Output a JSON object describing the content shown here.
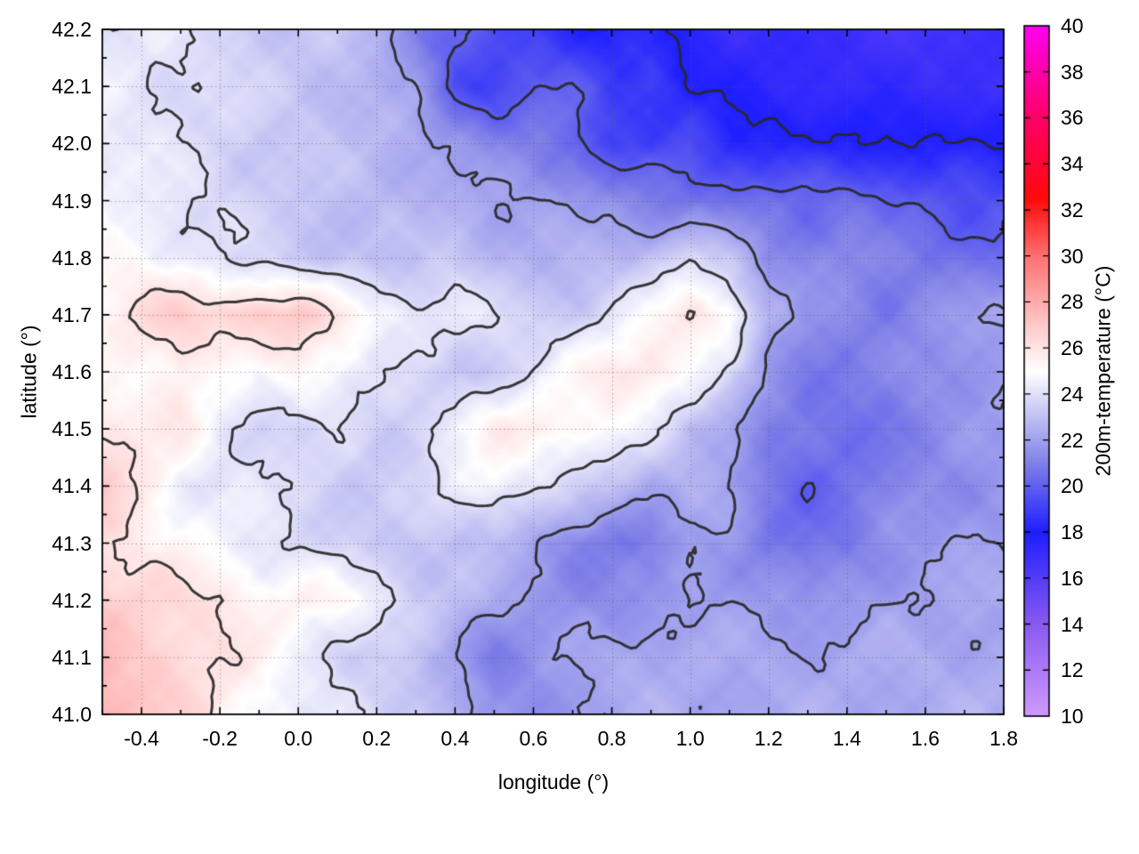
{
  "chart_data": {
    "type": "heatmap",
    "xlabel": "longitude (°)",
    "ylabel": "latitude (°)",
    "x_range": [
      -0.5,
      1.8
    ],
    "y_range": [
      41.0,
      42.2
    ],
    "x_ticks": {
      "values": [
        -0.4,
        -0.2,
        0.0,
        0.2,
        0.4,
        0.6,
        0.8,
        1.0,
        1.2,
        1.4,
        1.6,
        1.8
      ],
      "labels": [
        "-0.4",
        "-0.2",
        "0.0",
        "0.2",
        "0.4",
        "0.6",
        "0.8",
        "1.0",
        "1.2",
        "1.4",
        "1.6",
        "1.8"
      ],
      "minor_step": 0.1
    },
    "y_ticks": {
      "values": [
        41.0,
        41.1,
        41.2,
        41.3,
        41.4,
        41.5,
        41.6,
        41.7,
        41.8,
        41.9,
        42.0,
        42.1,
        42.2
      ],
      "labels": [
        "41.0",
        "41.1",
        "41.2",
        "41.3",
        "41.4",
        "41.5",
        "41.6",
        "41.7",
        "41.8",
        "41.9",
        "42.0",
        "42.1",
        "42.2"
      ],
      "minor_step": 0.05
    },
    "grid": {
      "show": true,
      "style": "dotted",
      "color": "rgba(95,95,95,0.55)"
    },
    "colorbar": {
      "label": "200m-temperature (°C)",
      "range": [
        10,
        40
      ],
      "ticks": {
        "values": [
          10,
          12,
          14,
          16,
          18,
          20,
          22,
          24,
          26,
          28,
          30,
          32,
          34,
          36,
          38,
          40
        ],
        "labels": [
          "10",
          "12",
          "14",
          "16",
          "18",
          "20",
          "22",
          "24",
          "26",
          "28",
          "30",
          "32",
          "34",
          "36",
          "38",
          "40"
        ]
      },
      "palette_stops": [
        [
          10,
          "#cf9aff"
        ],
        [
          14,
          "#8a5af0"
        ],
        [
          18,
          "#1e1eff"
        ],
        [
          21,
          "#8080e8"
        ],
        [
          25,
          "#ffffff"
        ],
        [
          27,
          "#ffc9c9"
        ],
        [
          30,
          "#ff7070"
        ],
        [
          32.5,
          "#ff0a0a"
        ],
        [
          36,
          "#ff0066"
        ],
        [
          40,
          "#ff00f0"
        ]
      ]
    },
    "contours": {
      "levels": [
        18,
        20,
        22,
        24,
        26,
        28
      ],
      "color": "rgba(40,40,40,0.92)",
      "width": 3
    },
    "field": {
      "units": "°C",
      "lons": [
        -0.5,
        -0.4,
        -0.3,
        -0.2,
        -0.1,
        0.0,
        0.1,
        0.2,
        0.3,
        0.4,
        0.5,
        0.6,
        0.7,
        0.8,
        0.9,
        1.0,
        1.1,
        1.2,
        1.3,
        1.4,
        1.5,
        1.6,
        1.7,
        1.8
      ],
      "lats": [
        42.2,
        42.1,
        42.0,
        41.9,
        41.8,
        41.7,
        41.6,
        41.5,
        41.4,
        41.3,
        41.2,
        41.1,
        41.0
      ],
      "values": [
        [
          24.3,
          24.2,
          24.0,
          23.8,
          23.5,
          22.9,
          23.2,
          22.6,
          21.2,
          20.0,
          19.2,
          19.0,
          18.5,
          18.0,
          18.2,
          17.5,
          17.2,
          17.0,
          17.0,
          16.8,
          16.8,
          16.5,
          16.5,
          16.8
        ],
        [
          24.4,
          24.2,
          24.0,
          23.8,
          23.5,
          23.3,
          23.0,
          22.5,
          21.8,
          19.5,
          19.2,
          20.0,
          19.8,
          19.0,
          19.2,
          18.0,
          17.5,
          17.5,
          17.3,
          17.2,
          17.0,
          17.0,
          17.2,
          17.0
        ],
        [
          24.5,
          24.3,
          24.0,
          23.7,
          23.4,
          23.2,
          23.0,
          22.8,
          22.5,
          21.8,
          21.0,
          21.0,
          20.5,
          19.0,
          18.8,
          19.5,
          18.5,
          18.2,
          18.0,
          18.0,
          18.2,
          18.0,
          18.0,
          17.8
        ],
        [
          24.6,
          24.4,
          24.2,
          23.8,
          23.5,
          23.2,
          23.0,
          22.8,
          22.6,
          22.4,
          22.2,
          22.0,
          21.8,
          21.5,
          21.0,
          20.5,
          20.5,
          20.5,
          20.3,
          20.5,
          20.0,
          19.8,
          19.5,
          19.5
        ],
        [
          25.2,
          25.0,
          24.4,
          24.0,
          23.6,
          23.3,
          23.1,
          23.0,
          22.8,
          23.5,
          22.6,
          22.5,
          22.5,
          22.8,
          23.0,
          24.0,
          23.0,
          21.5,
          21.2,
          21.5,
          21.0,
          20.8,
          20.5,
          20.5
        ],
        [
          25.5,
          26.3,
          26.8,
          26.5,
          27.2,
          27.0,
          25.8,
          24.8,
          24.5,
          24.3,
          24.0,
          23.5,
          23.5,
          24.0,
          25.0,
          26.0,
          25.5,
          22.5,
          21.5,
          21.3,
          21.0,
          21.5,
          21.8,
          22.0
        ],
        [
          25.0,
          25.2,
          25.8,
          25.0,
          24.5,
          25.5,
          25.0,
          24.0,
          23.5,
          23.2,
          23.5,
          24.0,
          25.0,
          26.0,
          26.2,
          25.0,
          23.5,
          21.8,
          21.0,
          20.8,
          21.0,
          21.5,
          21.8,
          22.0
        ],
        [
          26.0,
          25.5,
          25.8,
          24.5,
          23.8,
          23.5,
          23.8,
          23.5,
          23.8,
          24.5,
          25.5,
          25.8,
          25.5,
          25.0,
          24.0,
          23.0,
          22.5,
          21.0,
          20.5,
          20.5,
          20.8,
          21.2,
          21.5,
          21.8
        ],
        [
          27.0,
          26.0,
          24.5,
          24.0,
          24.2,
          24.0,
          23.5,
          23.2,
          23.5,
          24.5,
          25.0,
          24.0,
          23.5,
          23.0,
          22.5,
          22.5,
          22.0,
          20.8,
          20.2,
          20.5,
          21.0,
          21.3,
          21.5,
          21.7
        ],
        [
          26.2,
          25.5,
          25.2,
          24.8,
          24.2,
          23.8,
          23.5,
          23.3,
          23.2,
          23.0,
          22.8,
          22.2,
          21.2,
          20.8,
          20.8,
          22.0,
          21.8,
          20.8,
          20.5,
          20.8,
          21.5,
          21.8,
          22.0,
          22.0
        ],
        [
          26.8,
          26.5,
          26.3,
          26.0,
          25.3,
          25.5,
          25.3,
          24.5,
          23.5,
          23.0,
          22.3,
          21.8,
          21.5,
          21.3,
          21.5,
          22.0,
          22.0,
          21.8,
          21.5,
          21.8,
          22.0,
          22.0,
          22.2,
          22.2
        ],
        [
          27.5,
          27.0,
          26.5,
          26.0,
          25.5,
          24.5,
          23.8,
          23.3,
          23.0,
          22.0,
          21.0,
          21.5,
          22.0,
          22.3,
          22.5,
          22.3,
          22.2,
          22.2,
          22.2,
          22.2,
          22.3,
          22.3,
          22.3,
          22.3
        ],
        [
          27.8,
          27.0,
          26.5,
          25.8,
          25.0,
          24.3,
          24.0,
          23.8,
          23.5,
          22.5,
          21.3,
          21.5,
          22.0,
          22.2,
          22.3,
          22.3,
          22.3,
          22.3,
          22.3,
          22.3,
          22.4,
          22.4,
          22.4,
          22.4
        ]
      ]
    }
  }
}
